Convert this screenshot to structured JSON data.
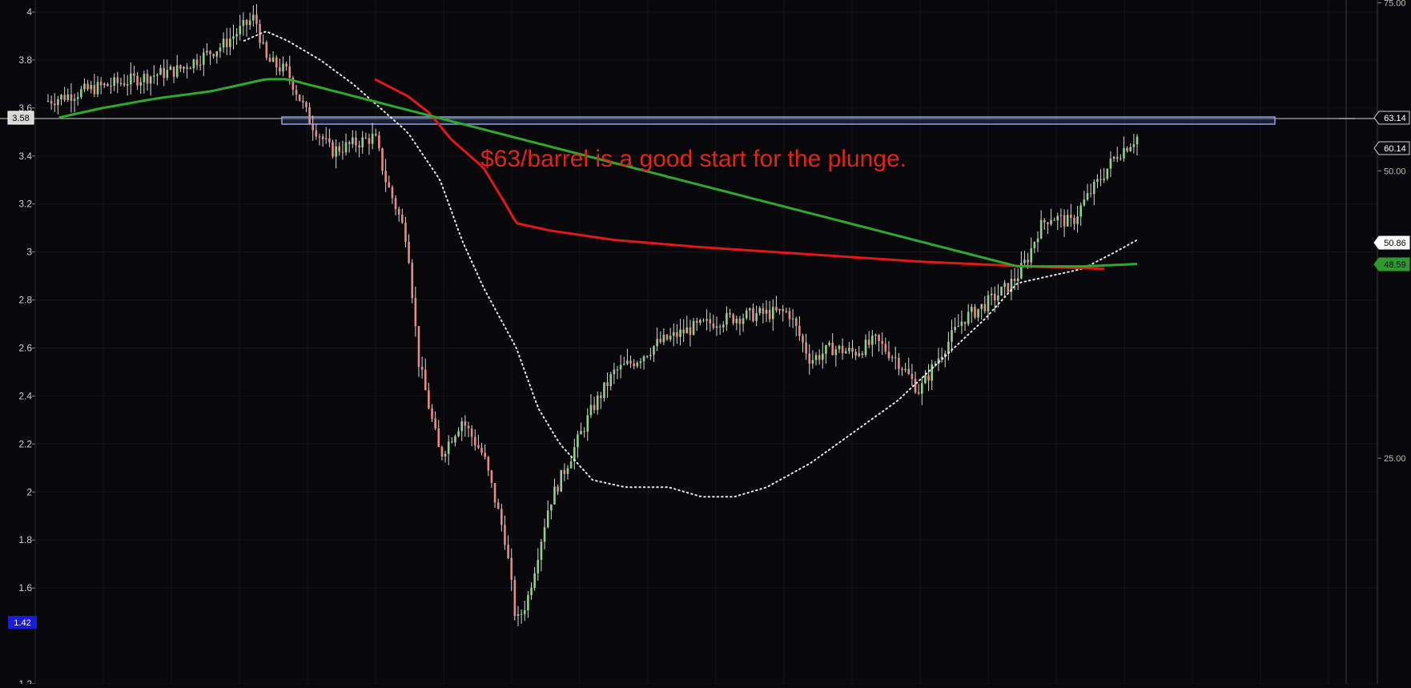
{
  "chart_data": {
    "type": "candlestick",
    "title": "",
    "annotation": {
      "text": "$63/barrel is a good start for the plunge.",
      "color": "#e0241b"
    },
    "left_axis": {
      "ticks": [
        "4",
        "3.8",
        "3.6",
        "3.4",
        "3.2",
        "3",
        "2.8",
        "2.6",
        "2.4",
        "2.2",
        "2",
        "1.8",
        "1.6",
        "1.2"
      ],
      "range": [
        1.2,
        4.05
      ]
    },
    "right_axis": {
      "ticks": [
        "75.00",
        "50.00",
        "25.00"
      ],
      "range": [
        14.5,
        75.5
      ],
      "scale": "log"
    },
    "price_badges": {
      "left_top": "3.58",
      "left_bottom": "1.42",
      "right_63": "63.14",
      "right_60": "60.14",
      "right_50": "50.86",
      "right_48": "48.59"
    },
    "resistance_zone": {
      "level": 63.14,
      "range": [
        3.56,
        3.59
      ],
      "color": "#6f8fd6"
    },
    "ma_long_red": {
      "name": "",
      "color": "#e01818",
      "points": [
        [
          0.3,
          3.72
        ],
        [
          0.33,
          3.65
        ],
        [
          0.35,
          3.58
        ],
        [
          0.37,
          3.47
        ],
        [
          0.4,
          3.35
        ],
        [
          0.42,
          3.2
        ],
        [
          0.43,
          3.12
        ],
        [
          0.46,
          3.09
        ],
        [
          0.52,
          3.05
        ],
        [
          0.6,
          3.02
        ],
        [
          0.7,
          2.99
        ],
        [
          0.8,
          2.96
        ],
        [
          0.9,
          2.94
        ],
        [
          0.97,
          2.93
        ]
      ]
    },
    "ma_green": {
      "name": "",
      "color": "#2ea82e",
      "points": [
        [
          0.01,
          3.56
        ],
        [
          0.05,
          3.6
        ],
        [
          0.1,
          3.64
        ],
        [
          0.15,
          3.67
        ],
        [
          0.18,
          3.7
        ],
        [
          0.2,
          3.72
        ],
        [
          0.22,
          3.72
        ],
        [
          0.89,
          2.94
        ],
        [
          0.95,
          2.94
        ],
        [
          1.0,
          2.95
        ]
      ]
    },
    "ma_white_dotted": {
      "name": "",
      "color": "#e8e8e8",
      "points": [
        [
          0.18,
          3.88
        ],
        [
          0.2,
          3.92
        ],
        [
          0.22,
          3.88
        ],
        [
          0.25,
          3.8
        ],
        [
          0.28,
          3.7
        ],
        [
          0.3,
          3.62
        ],
        [
          0.33,
          3.5
        ],
        [
          0.36,
          3.3
        ],
        [
          0.38,
          3.05
        ],
        [
          0.4,
          2.85
        ],
        [
          0.43,
          2.6
        ],
        [
          0.45,
          2.35
        ],
        [
          0.47,
          2.2
        ],
        [
          0.5,
          2.05
        ],
        [
          0.53,
          2.02
        ],
        [
          0.57,
          2.02
        ],
        [
          0.6,
          1.98
        ],
        [
          0.63,
          1.98
        ],
        [
          0.66,
          2.02
        ],
        [
          0.7,
          2.12
        ],
        [
          0.74,
          2.25
        ],
        [
          0.78,
          2.38
        ],
        [
          0.82,
          2.55
        ],
        [
          0.86,
          2.72
        ],
        [
          0.89,
          2.87
        ],
        [
          0.92,
          2.9
        ],
        [
          0.95,
          2.93
        ],
        [
          0.98,
          3.0
        ],
        [
          1.0,
          3.05
        ]
      ]
    },
    "price_path": [
      [
        0.0,
        3.63
      ],
      [
        0.04,
        3.68
      ],
      [
        0.08,
        3.72
      ],
      [
        0.12,
        3.76
      ],
      [
        0.16,
        3.86
      ],
      [
        0.18,
        3.94
      ],
      [
        0.19,
        3.98
      ],
      [
        0.2,
        3.8
      ],
      [
        0.22,
        3.75
      ],
      [
        0.24,
        3.55
      ],
      [
        0.26,
        3.42
      ],
      [
        0.28,
        3.45
      ],
      [
        0.3,
        3.48
      ],
      [
        0.31,
        3.3
      ],
      [
        0.32,
        3.18
      ],
      [
        0.33,
        3.05
      ],
      [
        0.34,
        2.55
      ],
      [
        0.36,
        2.15
      ],
      [
        0.38,
        2.3
      ],
      [
        0.4,
        2.15
      ],
      [
        0.42,
        1.8
      ],
      [
        0.43,
        1.45
      ],
      [
        0.44,
        1.55
      ],
      [
        0.45,
        1.75
      ],
      [
        0.46,
        1.95
      ],
      [
        0.48,
        2.15
      ],
      [
        0.5,
        2.35
      ],
      [
        0.52,
        2.5
      ],
      [
        0.54,
        2.55
      ],
      [
        0.56,
        2.62
      ],
      [
        0.59,
        2.68
      ],
      [
        0.62,
        2.72
      ],
      [
        0.65,
        2.74
      ],
      [
        0.68,
        2.75
      ],
      [
        0.7,
        2.55
      ],
      [
        0.72,
        2.6
      ],
      [
        0.74,
        2.58
      ],
      [
        0.76,
        2.63
      ],
      [
        0.78,
        2.55
      ],
      [
        0.8,
        2.42
      ],
      [
        0.82,
        2.58
      ],
      [
        0.84,
        2.72
      ],
      [
        0.86,
        2.78
      ],
      [
        0.88,
        2.85
      ],
      [
        0.89,
        2.9
      ],
      [
        0.9,
        2.98
      ],
      [
        0.91,
        3.1
      ],
      [
        0.92,
        3.15
      ],
      [
        0.94,
        3.12
      ],
      [
        0.95,
        3.2
      ],
      [
        0.97,
        3.33
      ],
      [
        0.98,
        3.4
      ],
      [
        1.0,
        3.48
      ]
    ],
    "grid": true,
    "legend": "none"
  }
}
